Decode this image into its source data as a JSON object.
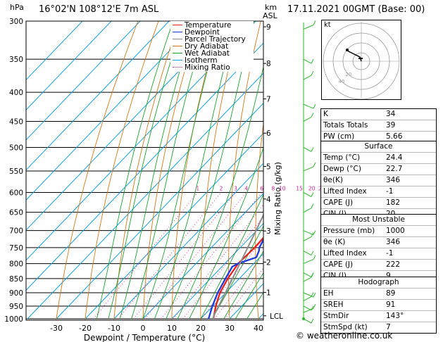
{
  "header": {
    "location": "16°02'N  108°12'E  7m  ASL",
    "datetime": "17.11.2021  00GMT  (Base: 00)",
    "pressure_unit": "hPa",
    "height_unit_km": "km",
    "height_unit_asl": "ASL"
  },
  "legend": [
    {
      "label": "Temperature",
      "color": "#e8201c",
      "style": "solid"
    },
    {
      "label": "Dewpoint",
      "color": "#1c3ad8",
      "style": "solid"
    },
    {
      "label": "Parcel Trajectory",
      "color": "#8c8c8c",
      "style": "solid"
    },
    {
      "label": "Dry Adiabat",
      "color": "#d07818",
      "style": "solid"
    },
    {
      "label": "Wet Adiabat",
      "color": "#1ca030",
      "style": "solid"
    },
    {
      "label": "Isotherm",
      "color": "#10a0e0",
      "style": "solid"
    },
    {
      "label": "Mixing Ratio",
      "color": "#d02090",
      "style": "dotted"
    }
  ],
  "chart_data": {
    "type": "line",
    "xlabel": "Dewpoint / Temperature (°C)",
    "xlim": [
      -35,
      40
    ],
    "x_ticks": [
      -30,
      -20,
      -10,
      0,
      10,
      20,
      30,
      40
    ],
    "pressure_ticks": [
      300,
      350,
      400,
      450,
      500,
      550,
      600,
      650,
      700,
      750,
      800,
      850,
      900,
      950,
      1000
    ],
    "height_ticks_km": [
      {
        "label": "9",
        "p": 307
      },
      {
        "label": "8",
        "p": 356
      },
      {
        "label": "7",
        "p": 411
      },
      {
        "label": "6",
        "p": 472
      },
      {
        "label": "5",
        "p": 540
      },
      {
        "label": "4",
        "p": 616
      },
      {
        "label": "3",
        "p": 701
      },
      {
        "label": "2",
        "p": 795
      },
      {
        "label": "1",
        "p": 899
      },
      {
        "label": "LCL",
        "p": 988
      }
    ],
    "mixing_ratio_labels": [
      "1",
      "2",
      "3",
      "4",
      "6",
      "8",
      "10",
      "15",
      "20",
      "25"
    ],
    "mixing_ratio_axis_label": "Mixing Ratio (g/kg)",
    "series": [
      {
        "name": "Temperature",
        "color": "#e8201c",
        "points": [
          [
            1000,
            24.4
          ],
          [
            950,
            21.0
          ],
          [
            900,
            18.0
          ],
          [
            850,
            16.0
          ],
          [
            800,
            14.6
          ],
          [
            750,
            15.0
          ],
          [
            700,
            14.6
          ],
          [
            650,
            12.0
          ],
          [
            600,
            8.2
          ],
          [
            550,
            4.6
          ],
          [
            500,
            0.2
          ],
          [
            450,
            -4.6
          ],
          [
            420,
            -6.2
          ],
          [
            400,
            -7.6
          ],
          [
            380,
            -10.2
          ]
        ]
      },
      {
        "name": "Dewpoint",
        "color": "#1c3ad8",
        "points": [
          [
            1000,
            22.7
          ],
          [
            950,
            19.8
          ],
          [
            900,
            17.2
          ],
          [
            850,
            15.2
          ],
          [
            810,
            13.6
          ],
          [
            800,
            14.5
          ],
          [
            780,
            18.8
          ],
          [
            760,
            17.6
          ],
          [
            750,
            16.6
          ],
          [
            700,
            14.1
          ],
          [
            680,
            11.0
          ],
          [
            650,
            9.4
          ],
          [
            600,
            6.4
          ],
          [
            550,
            3.6
          ],
          [
            510,
            -0.8
          ],
          [
            500,
            -1.2
          ],
          [
            460,
            -4.1
          ],
          [
            440,
            -6.0
          ],
          [
            430,
            -8.0
          ],
          [
            400,
            -11.2
          ],
          [
            400,
            -14.4
          ],
          [
            395,
            -23.3
          ],
          [
            387,
            -16.6
          ],
          [
            375,
            -14.4
          ],
          [
            345,
            -9.3
          ],
          [
            325,
            -10.7
          ],
          [
            300,
            -12.7
          ]
        ]
      },
      {
        "name": "Parcel Trajectory",
        "color": "#8c8c8c",
        "points": [
          [
            1000,
            24.4
          ],
          [
            988,
            23.5
          ],
          [
            950,
            22.0
          ],
          [
            900,
            19.9
          ],
          [
            850,
            17.6
          ],
          [
            800,
            15.2
          ],
          [
            750,
            12.6
          ],
          [
            700,
            9.8
          ],
          [
            650,
            6.7
          ],
          [
            600,
            3.3
          ],
          [
            550,
            -0.6
          ],
          [
            500,
            -5.0
          ],
          [
            450,
            -10.2
          ],
          [
            400,
            -16.5
          ],
          [
            380,
            -19.5
          ]
        ]
      }
    ],
    "grid": true
  },
  "hodograph": {
    "label": "kt",
    "ring_labels": [
      "20",
      "40"
    ]
  },
  "indices": {
    "rows": [
      {
        "label": "K",
        "value": "34"
      },
      {
        "label": "Totals Totals",
        "value": "39"
      },
      {
        "label": "PW (cm)",
        "value": "5.66"
      }
    ],
    "surface": {
      "title": "Surface",
      "rows": [
        {
          "label": "Temp (°C)",
          "value": "24.4"
        },
        {
          "label": "Dewp (°C)",
          "value": "22.7"
        },
        {
          "label": "θe(K)",
          "value": "346"
        },
        {
          "label": "Lifted Index",
          "value": "-1"
        },
        {
          "label": "CAPE (J)",
          "value": "182"
        },
        {
          "label": "CIN (J)",
          "value": "20"
        }
      ]
    },
    "most_unstable": {
      "title": "Most Unstable",
      "rows": [
        {
          "label": "Pressure (mb)",
          "value": "1000"
        },
        {
          "label": "θe (K)",
          "value": "346"
        },
        {
          "label": "Lifted Index",
          "value": "-1"
        },
        {
          "label": "CAPE (J)",
          "value": "222"
        },
        {
          "label": "CIN (J)",
          "value": "9"
        }
      ]
    },
    "hodograph_box": {
      "title": "Hodograph",
      "rows": [
        {
          "label": "EH",
          "value": "89"
        },
        {
          "label": "SREH",
          "value": "91"
        },
        {
          "label": "StmDir",
          "value": "143°"
        },
        {
          "label": "StmSpd (kt)",
          "value": "7"
        }
      ]
    }
  },
  "footer": "© weatheronline.co.uk",
  "colors": {
    "isotherm": "#10a0e0",
    "dry_adiabat": "#d07818",
    "wet_adiabat": "#1ca030",
    "mixing_ratio": "#d02090",
    "wind_barb": "#2ab82a"
  }
}
